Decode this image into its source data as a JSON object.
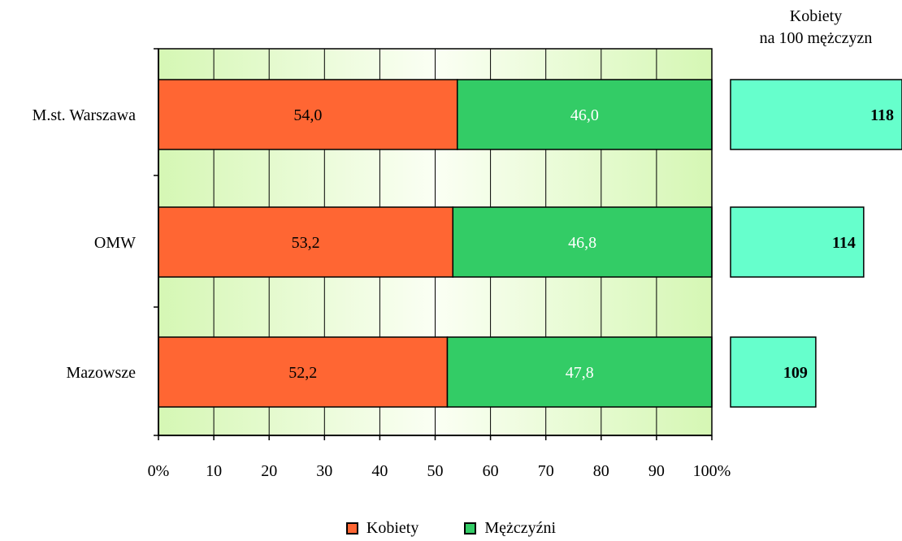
{
  "chart_data": {
    "type": "bar",
    "orientation": "horizontal",
    "stacked": true,
    "percent_scale": true,
    "categories": [
      "M.st. Warszawa",
      "OMW",
      "Mazowsze"
    ],
    "series": [
      {
        "name": "Kobiety",
        "values": [
          54.0,
          53.2,
          52.2
        ],
        "labels": [
          "54,0",
          "53,2",
          "52,2"
        ],
        "color": "#ff6633",
        "label_color": "#000000"
      },
      {
        "name": "Mężczyźni",
        "values": [
          46.0,
          46.8,
          47.8
        ],
        "labels": [
          "46,0",
          "46,8",
          "47,8"
        ],
        "color": "#33cc66",
        "label_color": "#ffffff"
      }
    ],
    "xticks": [
      "0%",
      "10",
      "20",
      "30",
      "40",
      "50",
      "60",
      "70",
      "80",
      "90",
      "100%"
    ],
    "xlim": [
      0,
      100
    ],
    "grid": true,
    "legend_position": "bottom",
    "ratio_panel": {
      "title_lines": [
        "Kobiety",
        "na 100 mężczyzn"
      ],
      "values": [
        118,
        114,
        109
      ],
      "color": "#66ffcc"
    }
  }
}
